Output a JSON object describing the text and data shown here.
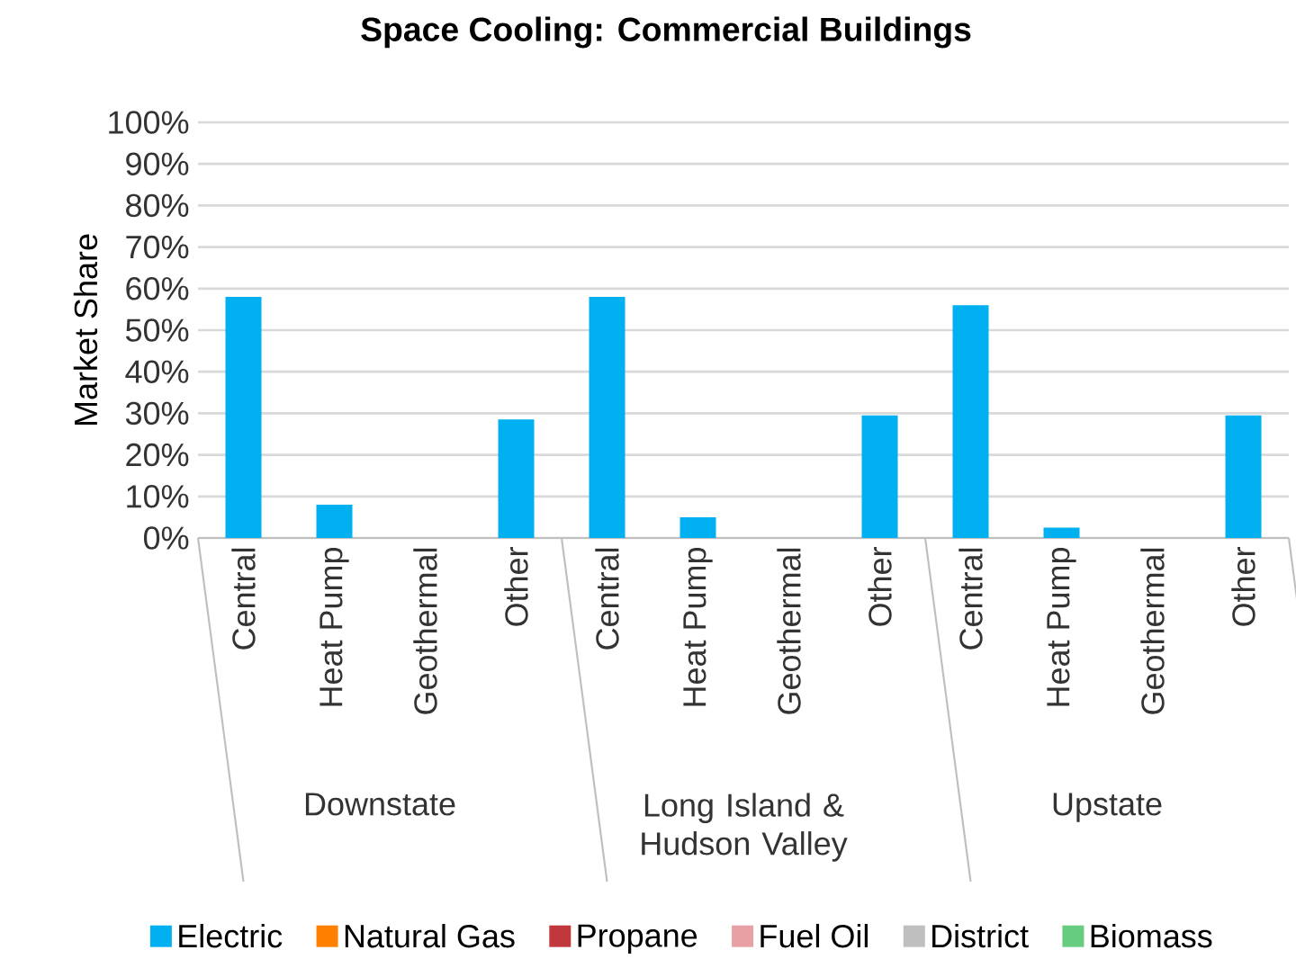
{
  "chart_data": {
    "type": "bar",
    "title": "Space Cooling: Commercial Buildings",
    "ylabel": "Market Share",
    "stacked": true,
    "grid": "y",
    "legend": "bottom",
    "categories": [
      "Central",
      "Heat Pump",
      "Geothermal",
      "Other",
      "Central",
      "Heat Pump",
      "Geothermal",
      "Other",
      "Central",
      "Heat Pump",
      "Geothermal",
      "Other"
    ],
    "annotations": [
      "Downstate",
      "Long Island & Hudson Valley",
      "Upstate"
    ],
    "ylim": [
      0,
      100
    ],
    "yticks": [
      {
        "value": 0,
        "label": "0%"
      },
      {
        "value": 10,
        "label": "10%"
      },
      {
        "value": 20,
        "label": "20%"
      },
      {
        "value": 30,
        "label": "30%"
      },
      {
        "value": 40,
        "label": "40%"
      },
      {
        "value": 50,
        "label": "50%"
      },
      {
        "value": 60,
        "label": "60%"
      },
      {
        "value": 70,
        "label": "70%"
      },
      {
        "value": 80,
        "label": "80%"
      },
      {
        "value": 90,
        "label": "90%"
      },
      {
        "value": 100,
        "label": "100%"
      }
    ],
    "series": [
      {
        "name": "Electric",
        "color": "#00b0f0",
        "values": [
          58,
          8,
          0,
          28.5,
          58,
          5,
          0,
          29.5,
          56,
          2.5,
          0,
          29.5
        ]
      },
      {
        "name": "Natural Gas",
        "color": "#ff7f00",
        "values": [
          0,
          0,
          0,
          0,
          0,
          0,
          0,
          0,
          0,
          0,
          0,
          0
        ]
      },
      {
        "name": "Propane",
        "color": "#c0383c",
        "values": [
          0,
          0,
          0,
          0,
          0,
          0,
          0,
          0,
          0,
          0,
          0,
          0
        ]
      },
      {
        "name": "Fuel Oil",
        "color": "#e8a0a4",
        "values": [
          0,
          0,
          0,
          0,
          0,
          0,
          0,
          0,
          0,
          0,
          0,
          0
        ]
      },
      {
        "name": "District",
        "color": "#bfbfbf",
        "values": [
          0,
          0,
          0,
          0,
          0,
          0,
          0,
          0,
          0,
          0,
          0,
          0
        ]
      },
      {
        "name": "Biomass",
        "color": "#66cc80",
        "values": [
          0,
          0,
          0,
          0,
          0,
          0,
          0,
          0,
          0,
          0,
          0,
          0
        ]
      }
    ]
  }
}
